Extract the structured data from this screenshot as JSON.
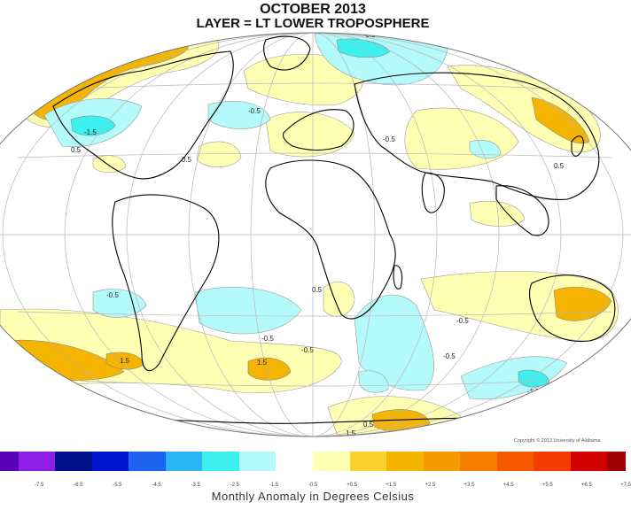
{
  "title": {
    "line1": "OCTOBER 2013",
    "line2": "LAYER = LT LOWER TROPOSPHERE"
  },
  "copyright": "Copyright © 2013 University of Alabama",
  "caption": "Monthly Anomaly in Degrees Celsius",
  "legend": {
    "colors": [
      "#5a00b4",
      "#8c1ee6",
      "#000f87",
      "#0014d2",
      "#1e64f0",
      "#28b4f5",
      "#3cf0f0",
      "#b4fafa",
      "#ffffff",
      "#ffffb4",
      "#fad22d",
      "#f5b400",
      "#f59b00",
      "#f57d00",
      "#f55a00",
      "#f53c00",
      "#d20000",
      "#a00000"
    ],
    "ticks": [
      "-7.5",
      "-6.5",
      "-5.5",
      "-4.5",
      "-3.5",
      "-2.5",
      "-1.5",
      "-0.5",
      "+0.5",
      "+1.5",
      "+2.5",
      "+3.5",
      "+4.5",
      "+5.5",
      "+6.5",
      "+7.5"
    ]
  },
  "map": {
    "contour_labels": [
      "-0.5",
      "1.5",
      "-1.5",
      "0.5",
      "-0.5",
      "-0.5",
      "0.5",
      "-0.5",
      "0.5",
      "-0.5",
      "0.5",
      "-0.5",
      "-0.5",
      "1.5",
      "1.5",
      "-0.5",
      "-1.5",
      "-0.5",
      "1.5",
      "-0.5",
      "0.5",
      "1.5"
    ]
  }
}
